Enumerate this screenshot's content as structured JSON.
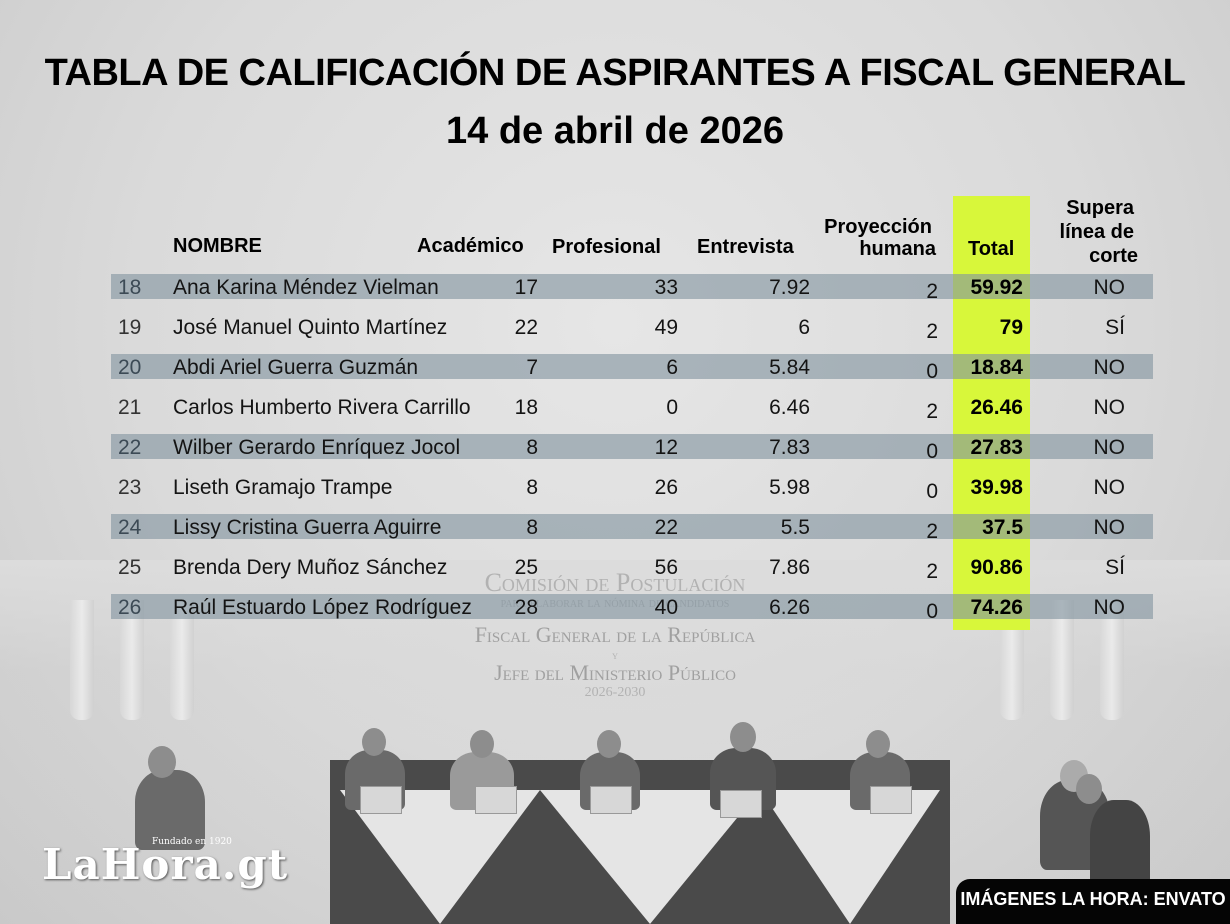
{
  "header": {
    "title": "TABLA DE CALIFICACIÓN DE ASPIRANTES A FISCAL GENERAL",
    "date": "14 de abril de 2026"
  },
  "table": {
    "columns": {
      "nombre": "NOMBRE",
      "academico": "Académico",
      "profesional": "Profesional",
      "entrevista": "Entrevista",
      "proyeccion_line1": "Proyección",
      "proyeccion_line2": "humana",
      "total": "Total",
      "supera_line1": "Supera",
      "supera_line2": "línea de",
      "supera_line3": "corte"
    },
    "highlight_color": "#d8f73a",
    "stripe_color": "#8294a0",
    "rows": [
      {
        "num": "18",
        "nombre": "Ana Karina Méndez Vielman",
        "academico": "17",
        "profesional": "33",
        "entrevista": "7.92",
        "proyeccion": "2",
        "total": "59.92",
        "supera": "NO"
      },
      {
        "num": "19",
        "nombre": "José Manuel Quinto Martínez",
        "academico": "22",
        "profesional": "49",
        "entrevista": "6",
        "proyeccion": "2",
        "total": "79",
        "supera": "SÍ"
      },
      {
        "num": "20",
        "nombre": "Abdi Ariel Guerra Guzmán",
        "academico": "7",
        "profesional": "6",
        "entrevista": "5.84",
        "proyeccion": "0",
        "total": "18.84",
        "supera": "NO"
      },
      {
        "num": "21",
        "nombre": "Carlos Humberto Rivera Carrillo",
        "academico": "18",
        "profesional": "0",
        "entrevista": "6.46",
        "proyeccion": "2",
        "total": "26.46",
        "supera": "NO"
      },
      {
        "num": "22",
        "nombre": "Wilber Gerardo Enríquez Jocol",
        "academico": "8",
        "profesional": "12",
        "entrevista": "7.83",
        "proyeccion": "0",
        "total": "27.83",
        "supera": "NO"
      },
      {
        "num": "23",
        "nombre": "Liseth Gramajo Trampe",
        "academico": "8",
        "profesional": "26",
        "entrevista": "5.98",
        "proyeccion": "0",
        "total": "39.98",
        "supera": "NO"
      },
      {
        "num": "24",
        "nombre": "Lissy Cristina Guerra Aguirre",
        "academico": "8",
        "profesional": "22",
        "entrevista": "5.5",
        "proyeccion": "2",
        "total": "37.5",
        "supera": "NO"
      },
      {
        "num": "25",
        "nombre": "Brenda Dery Muñoz Sánchez",
        "academico": "25",
        "profesional": "56",
        "entrevista": "7.86",
        "proyeccion": "2",
        "total": "90.86",
        "supera": "SÍ"
      },
      {
        "num": "26",
        "nombre": "Raúl Estuardo López Rodríguez",
        "academico": "28",
        "profesional": "40",
        "entrevista": "6.26",
        "proyeccion": "0",
        "total": "74.26",
        "supera": "NO"
      }
    ]
  },
  "background": {
    "banner_line1": "Comisión de Postulación",
    "banner_line2": "para elaborar la nómina de candidatos",
    "banner_line3": "Fiscal General de la República",
    "banner_line4": "y",
    "banner_line5": "Jefe del Ministerio Público",
    "banner_line6": "2026-2030"
  },
  "footer": {
    "logo": "LaHora.gt",
    "logo_tagline": "Fundado en 1920",
    "credit": "IMÁGENES LA HORA: ENVATO"
  }
}
